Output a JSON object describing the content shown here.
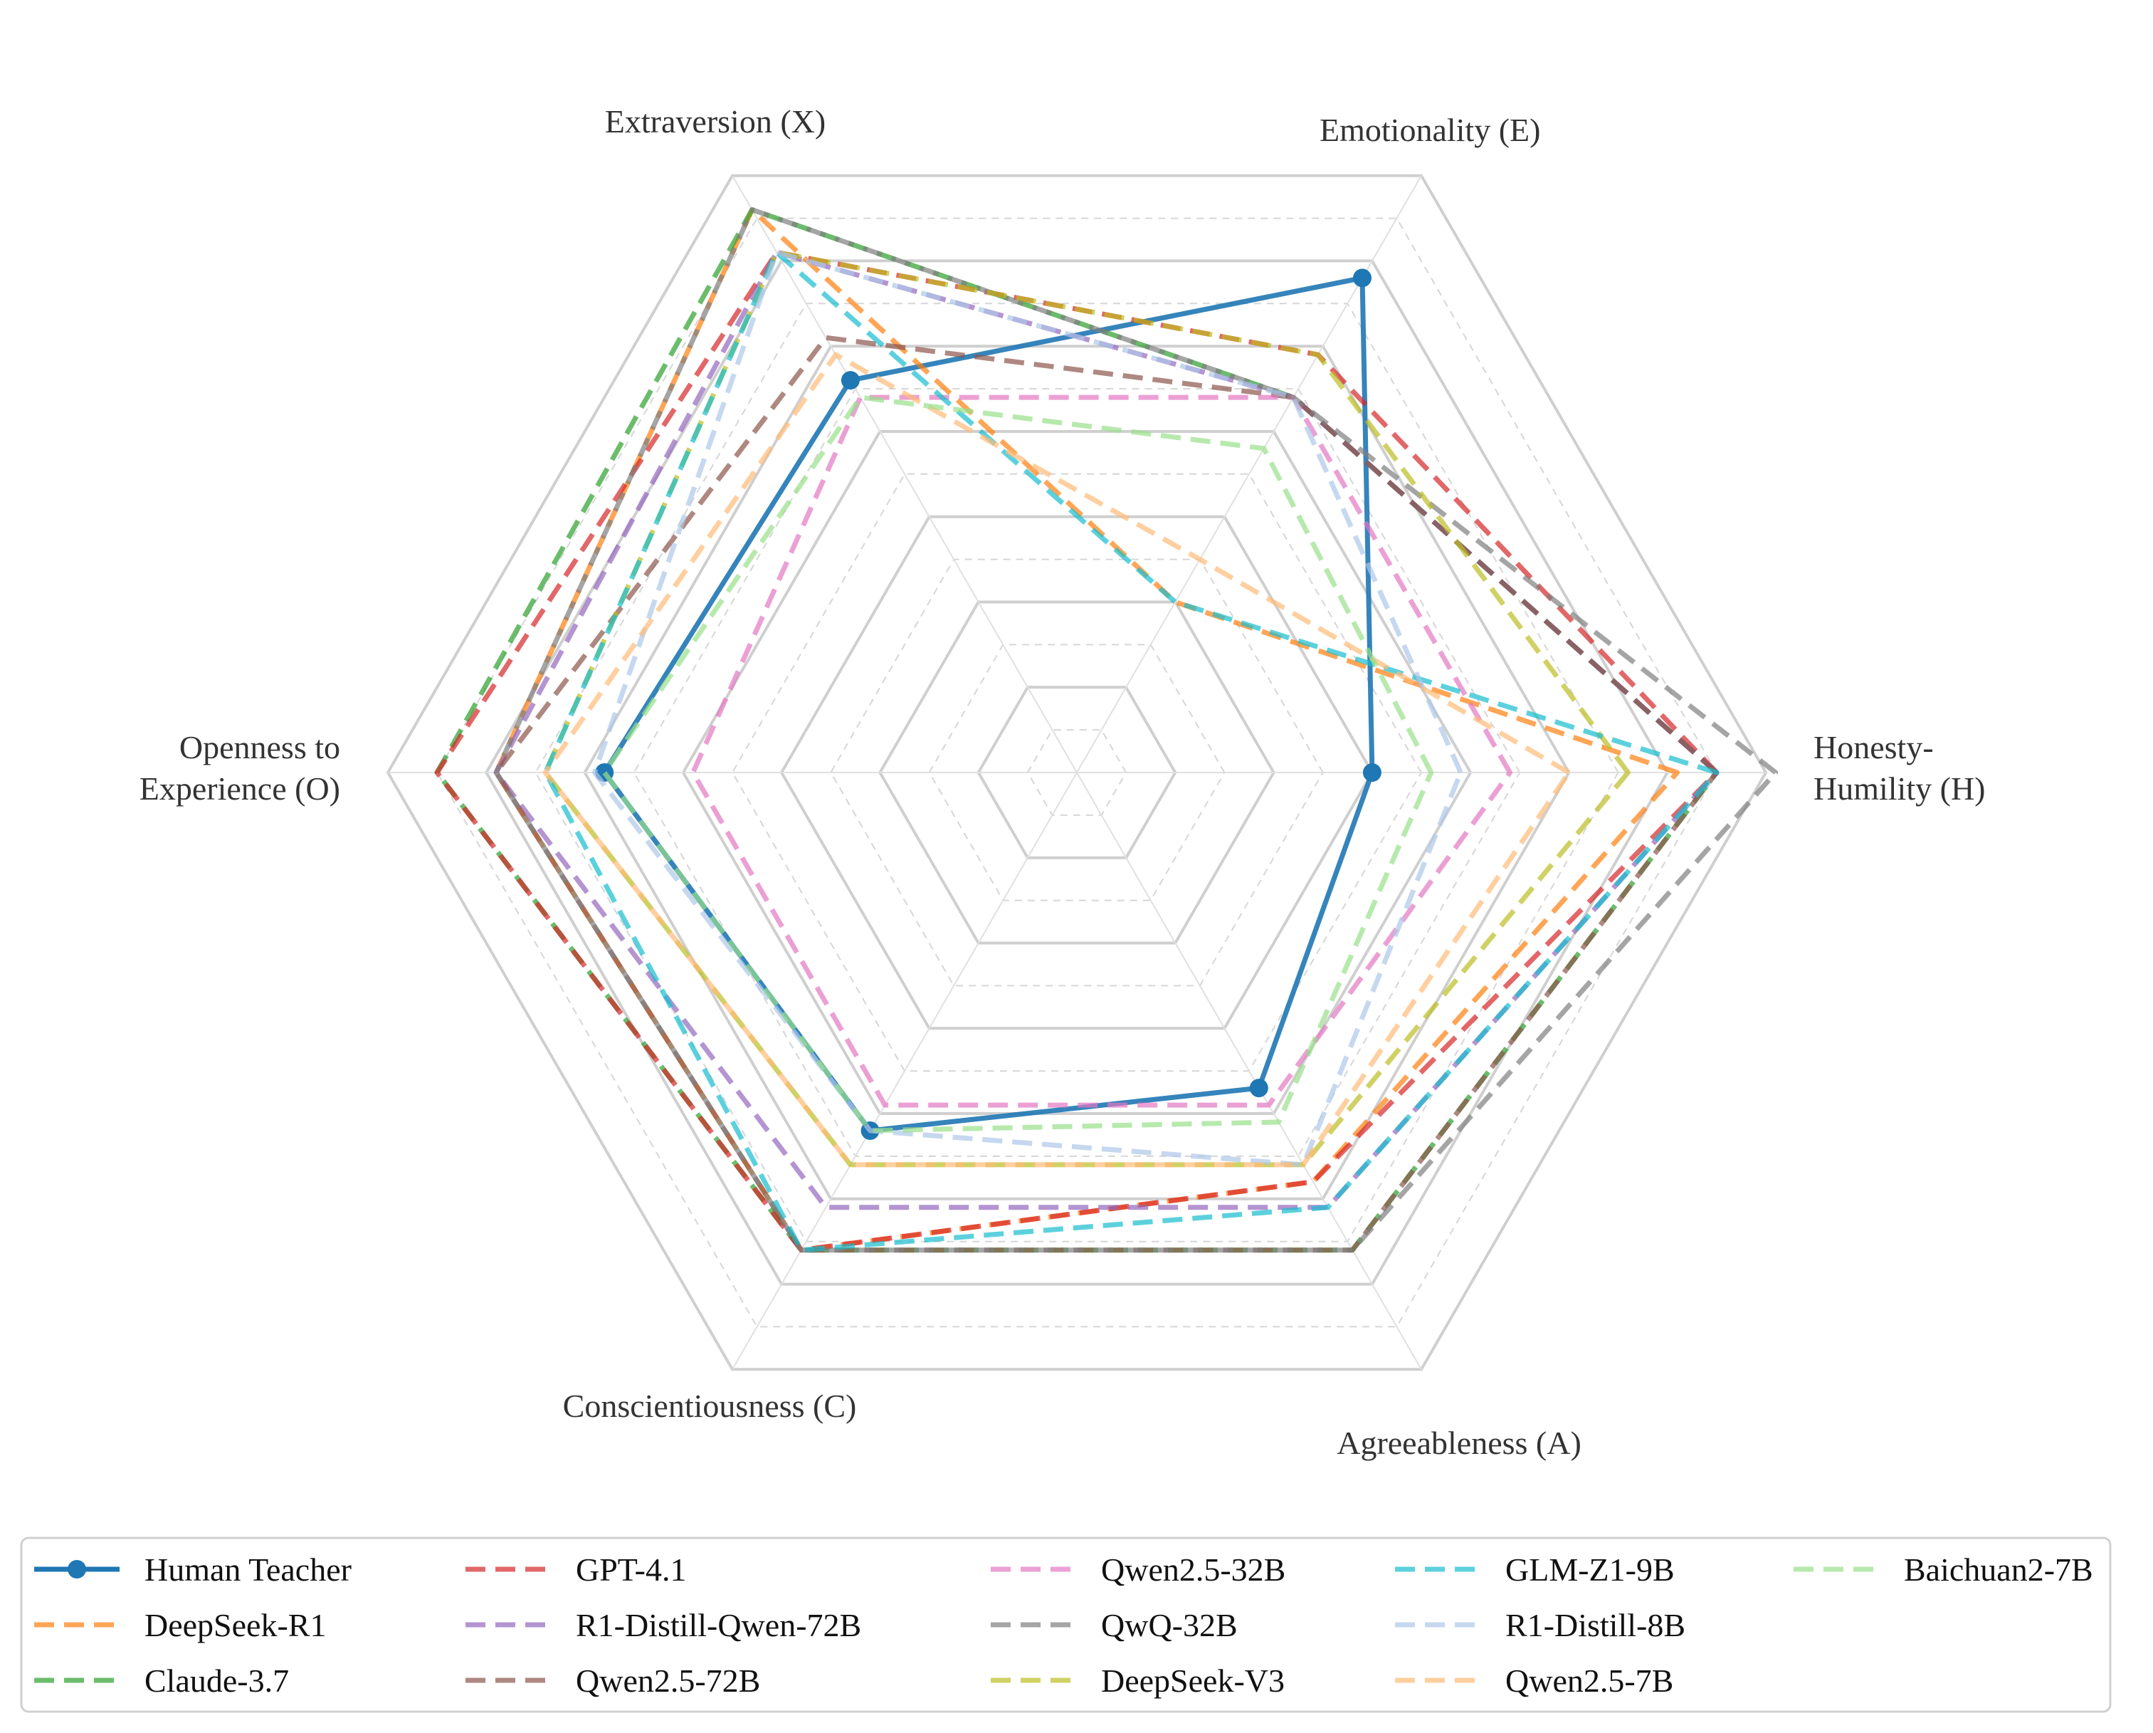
{
  "chart_data": {
    "type": "radar",
    "title": "",
    "axes": [
      {
        "key": "H",
        "label_lines": [
          "Honesty-",
          "Humility (H)"
        ]
      },
      {
        "key": "E",
        "label_lines": [
          "Emotionality (E)"
        ]
      },
      {
        "key": "X",
        "label_lines": [
          "Extraversion (X)"
        ]
      },
      {
        "key": "O",
        "label_lines": [
          "Openness to",
          "Experience (O)"
        ]
      },
      {
        "key": "C",
        "label_lines": [
          "Conscientiousness (C)"
        ]
      },
      {
        "key": "A",
        "label_lines": [
          "Agreeableness (A)"
        ]
      }
    ],
    "r_range": [
      0,
      7
    ],
    "rings": [
      0.5,
      1,
      1.5,
      2,
      2.5,
      3,
      3.5,
      4,
      4.5,
      5,
      5.5,
      6,
      6.5,
      7
    ],
    "grid": true,
    "legend_position": "bottom",
    "legend_columns": 5,
    "series": [
      {
        "name": "Human Teacher",
        "color": "#1f77b4",
        "style": "solid-marker",
        "values": {
          "H": 3.0,
          "E": 5.8,
          "X": 4.6,
          "O": 4.8,
          "C": 4.2,
          "A": 3.7
        }
      },
      {
        "name": "DeepSeek-R1",
        "color": "#ff7f0e",
        "style": "dashed",
        "values": {
          "H": 6.1,
          "E": 2.0,
          "X": 6.6,
          "O": 5.9,
          "C": 5.6,
          "A": 4.8
        }
      },
      {
        "name": "Claude-3.7",
        "color": "#2ca02c",
        "style": "dashed",
        "values": {
          "H": 6.5,
          "E": 4.4,
          "X": 6.6,
          "O": 6.5,
          "C": 5.6,
          "A": 5.6
        }
      },
      {
        "name": "GPT-4.1",
        "color": "#d62728",
        "style": "dashed",
        "values": {
          "H": 6.5,
          "E": 4.9,
          "X": 6.1,
          "O": 6.5,
          "C": 5.6,
          "A": 4.8
        }
      },
      {
        "name": "R1-Distill-Qwen-72B",
        "color": "#9467bd",
        "style": "dashed",
        "values": {
          "H": 6.5,
          "E": 4.4,
          "X": 6.1,
          "O": 5.9,
          "C": 5.1,
          "A": 5.1
        }
      },
      {
        "name": "Qwen2.5-72B",
        "color": "#8c564b",
        "style": "dashed",
        "values": {
          "H": 6.5,
          "E": 4.4,
          "X": 5.1,
          "O": 5.9,
          "C": 5.6,
          "A": 5.6
        }
      },
      {
        "name": "Qwen2.5-32B",
        "color": "#e377c2",
        "style": "dashed",
        "values": {
          "H": 4.4,
          "E": 4.4,
          "X": 4.4,
          "O": 3.9,
          "C": 3.9,
          "A": 3.9
        }
      },
      {
        "name": "QwQ-32B",
        "color": "#7f7f7f",
        "style": "dashed",
        "values": {
          "H": 7.1,
          "E": 4.4,
          "X": 6.6,
          "O": 5.9,
          "C": 5.6,
          "A": 5.6
        }
      },
      {
        "name": "DeepSeek-V3",
        "color": "#bcbd22",
        "style": "dashed",
        "values": {
          "H": 5.6,
          "E": 4.9,
          "X": 6.1,
          "O": 5.4,
          "C": 4.6,
          "A": 4.6
        }
      },
      {
        "name": "GLM-Z1-9B",
        "color": "#17becf",
        "style": "dashed",
        "values": {
          "H": 6.5,
          "E": 2.0,
          "X": 6.1,
          "O": 5.4,
          "C": 5.6,
          "A": 5.1
        }
      },
      {
        "name": "R1-Distill-8B",
        "color": "#aec7e8",
        "style": "dashed",
        "values": {
          "H": 3.9,
          "E": 4.4,
          "X": 6.1,
          "O": 4.9,
          "C": 4.2,
          "A": 4.6
        }
      },
      {
        "name": "Qwen2.5-7B",
        "color": "#ffbb78",
        "style": "dashed",
        "values": {
          "H": 5.0,
          "E": 2.5,
          "X": 4.9,
          "O": 5.4,
          "C": 4.6,
          "A": 4.6
        }
      },
      {
        "name": "Baichuan2-7B",
        "color": "#98df8a",
        "style": "dashed",
        "values": {
          "H": 3.6,
          "E": 3.8,
          "X": 4.4,
          "O": 4.8,
          "C": 4.2,
          "A": 4.1
        }
      }
    ]
  }
}
